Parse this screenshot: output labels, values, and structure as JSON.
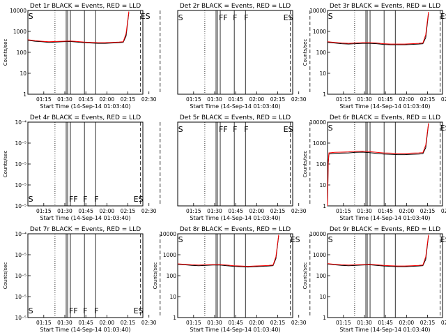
{
  "figure": {
    "background": "#ffffff",
    "axis_color": "#000000",
    "events_color": "#000000",
    "lld_color": "#ff0000"
  },
  "chart_data": [
    {
      "type": "line",
      "title": "Det 1r BLACK = Events, RED = LLD",
      "xlabel": "Start Time (14-Sep-14 01:03:40)",
      "ylabel": "Counts/sec",
      "yscale": "log",
      "ylim": [
        1,
        10000
      ],
      "yticks": [
        "1",
        "10",
        "100",
        "1000",
        "10000"
      ],
      "xticks": [
        "01:15",
        "01:30",
        "01:45",
        "02:00",
        "02:15",
        "02:30"
      ],
      "annotations": [
        {
          "text": "S",
          "x": "01:04"
        },
        {
          "text": "ES",
          "x": "02:24"
        }
      ],
      "series": [
        {
          "name": "Events",
          "color": "#000000",
          "x": [
            0,
            5,
            10,
            15,
            20,
            25,
            30,
            35,
            40,
            45,
            50,
            55,
            60,
            65,
            68,
            70,
            72
          ],
          "y": [
            380,
            340,
            320,
            300,
            310,
            320,
            330,
            310,
            290,
            280,
            270,
            270,
            280,
            290,
            300,
            600,
            8000
          ]
        },
        {
          "name": "LLD",
          "color": "#ff0000",
          "x": [
            0,
            5,
            10,
            15,
            20,
            25,
            30,
            35,
            40,
            45,
            50,
            55,
            60,
            65,
            68,
            70,
            72
          ],
          "y": [
            400,
            360,
            340,
            320,
            330,
            340,
            350,
            330,
            310,
            300,
            290,
            290,
            300,
            310,
            320,
            800,
            9000
          ]
        }
      ]
    },
    {
      "type": "line",
      "title": "Det 2r BLACK = Events, RED = LLD",
      "xlabel": "Start Time (14-Sep-14 01:03:40)",
      "ylabel": "",
      "yscale": "log",
      "ylim": [
        1,
        10000
      ],
      "yticks": [],
      "xticks": [
        "01:15",
        "01:30",
        "01:45",
        "02:00",
        "02:15",
        "02:30"
      ],
      "annotations": [
        {
          "text": "S",
          "x": "01:04"
        },
        {
          "text": "FF",
          "x": "01:33"
        },
        {
          "text": "F",
          "x": "01:43"
        },
        {
          "text": "F",
          "x": "01:51"
        },
        {
          "text": "ES",
          "x": "02:19"
        }
      ],
      "series": []
    },
    {
      "type": "line",
      "title": "Det 3r BLACK = Events, RED = LLD",
      "xlabel": "Start Time (14-Sep-14 01:03:40)",
      "ylabel": "Counts/sec",
      "yscale": "log",
      "ylim": [
        1,
        10000
      ],
      "yticks": [
        "1",
        "10",
        "100",
        "1000",
        "10000"
      ],
      "xticks": [
        "01:15",
        "01:30",
        "01:45",
        "02:00",
        "02:15",
        "02:30"
      ],
      "annotations": [
        {
          "text": "S",
          "x": "01:04"
        },
        {
          "text": "ES",
          "x": "02:24"
        }
      ],
      "series": [
        {
          "name": "Events",
          "color": "#000000",
          "x": [
            0,
            5,
            10,
            15,
            20,
            25,
            30,
            35,
            40,
            45,
            50,
            55,
            60,
            65,
            68,
            70,
            72
          ],
          "y": [
            300,
            280,
            260,
            250,
            260,
            270,
            270,
            260,
            240,
            230,
            230,
            230,
            240,
            250,
            260,
            500,
            7000
          ]
        },
        {
          "name": "LLD",
          "color": "#ff0000",
          "x": [
            0,
            5,
            10,
            15,
            20,
            25,
            30,
            35,
            40,
            45,
            50,
            55,
            60,
            65,
            68,
            70,
            72
          ],
          "y": [
            320,
            300,
            280,
            270,
            280,
            290,
            290,
            280,
            260,
            250,
            250,
            250,
            260,
            270,
            280,
            700,
            8500
          ]
        }
      ]
    },
    {
      "type": "line",
      "title": "Det 4r BLACK = Events, RED = LLD",
      "xlabel": "Start Time (14-Sep-14 01:03:40)",
      "ylabel": "Counts/sec",
      "yscale": "log",
      "ylim": [
        1e-05,
        0.0001
      ],
      "yticks": [
        "10⁻⁵",
        "10⁻⁵",
        "10⁻⁵",
        "10⁻⁵",
        "10⁻⁴"
      ],
      "xticks": [
        "01:15",
        "01:30",
        "01:45",
        "02:00",
        "02:15",
        "02:30"
      ],
      "annotations": [
        {
          "text": "S",
          "x": "01:04"
        },
        {
          "text": "FF",
          "x": "01:33"
        },
        {
          "text": "F",
          "x": "01:43"
        },
        {
          "text": "F",
          "x": "01:51"
        },
        {
          "text": "ES",
          "x": "02:19"
        }
      ],
      "series": []
    },
    {
      "type": "line",
      "title": "Det 5r BLACK = Events, RED = LLD",
      "xlabel": "Start Time (14-Sep-14 01:03:40)",
      "ylabel": "",
      "yscale": "log",
      "ylim": [
        1,
        10000
      ],
      "yticks": [],
      "xticks": [
        "01:15",
        "01:30",
        "01:45",
        "02:00",
        "02:15",
        "02:30"
      ],
      "annotations": [
        {
          "text": "S",
          "x": "01:04"
        },
        {
          "text": "FF",
          "x": "01:33"
        },
        {
          "text": "F",
          "x": "01:43"
        },
        {
          "text": "F",
          "x": "01:51"
        },
        {
          "text": "ES",
          "x": "02:19"
        }
      ],
      "series": []
    },
    {
      "type": "line",
      "title": "Det 6r BLACK = Events, RED = LLD",
      "xlabel": "Start Time (14-Sep-14 01:03:40)",
      "ylabel": "Counts/sec",
      "yscale": "log",
      "ylim": [
        1,
        10000
      ],
      "yticks": [
        "1",
        "10",
        "100",
        "1000",
        "10000"
      ],
      "xticks": [
        "01:15",
        "01:30",
        "01:45",
        "02:00",
        "02:15",
        "02:30"
      ],
      "annotations": [
        {
          "text": "S",
          "x": "01:04"
        },
        {
          "text": "ES",
          "x": "02:24"
        }
      ],
      "series": [
        {
          "name": "Events",
          "color": "#000000",
          "x": [
            0,
            0.5,
            1,
            5,
            10,
            15,
            20,
            25,
            30,
            35,
            40,
            45,
            50,
            55,
            60,
            65,
            68,
            70,
            72
          ],
          "y": [
            1,
            100,
            300,
            320,
            330,
            340,
            360,
            370,
            350,
            320,
            300,
            290,
            280,
            280,
            290,
            300,
            310,
            600,
            8000
          ]
        },
        {
          "name": "LLD",
          "color": "#ff0000",
          "x": [
            0,
            0.5,
            1,
            5,
            10,
            15,
            20,
            25,
            30,
            35,
            40,
            45,
            50,
            55,
            60,
            65,
            68,
            70,
            72
          ],
          "y": [
            1,
            120,
            340,
            360,
            370,
            380,
            400,
            410,
            390,
            360,
            340,
            330,
            320,
            320,
            330,
            340,
            350,
            800,
            9000
          ]
        }
      ]
    },
    {
      "type": "line",
      "title": "Det 7r BLACK = Events, RED = LLD",
      "xlabel": "Start Time (14-Sep-14 01:03:40)",
      "ylabel": "Counts/sec",
      "yscale": "log",
      "ylim": [
        1e-05,
        0.0001
      ],
      "yticks": [
        "10⁻⁵",
        "10⁻⁵",
        "10⁻⁵",
        "10⁻⁵",
        "10⁻⁴"
      ],
      "xticks": [
        "01:15",
        "01:30",
        "01:45",
        "02:00",
        "02:15",
        "02:30"
      ],
      "annotations": [
        {
          "text": "S",
          "x": "01:04"
        },
        {
          "text": "FF",
          "x": "01:33"
        },
        {
          "text": "F",
          "x": "01:43"
        },
        {
          "text": "F",
          "x": "01:51"
        },
        {
          "text": "ES",
          "x": "02:19"
        }
      ],
      "series": []
    },
    {
      "type": "line",
      "title": "Det 8r BLACK = Events, RED = LLD",
      "xlabel": "Start Time (14-Sep-14 01:03:40)",
      "ylabel": "Counts/sec",
      "yscale": "log",
      "ylim": [
        1,
        10000
      ],
      "yticks": [
        "1",
        "10",
        "100",
        "1000",
        "10000"
      ],
      "xticks": [
        "01:15",
        "01:30",
        "01:45",
        "02:00",
        "02:15",
        "02:30"
      ],
      "annotations": [
        {
          "text": "S",
          "x": "01:04"
        },
        {
          "text": "ES",
          "x": "02:24"
        }
      ],
      "series": [
        {
          "name": "Events",
          "color": "#000000",
          "x": [
            0,
            5,
            10,
            15,
            20,
            25,
            30,
            35,
            40,
            45,
            50,
            55,
            60,
            65,
            68,
            70,
            72
          ],
          "y": [
            350,
            330,
            310,
            300,
            310,
            320,
            320,
            300,
            280,
            270,
            260,
            270,
            280,
            290,
            300,
            650,
            8000
          ]
        },
        {
          "name": "LLD",
          "color": "#ff0000",
          "x": [
            0,
            5,
            10,
            15,
            20,
            25,
            30,
            35,
            40,
            45,
            50,
            55,
            60,
            65,
            68,
            70,
            72
          ],
          "y": [
            370,
            350,
            330,
            320,
            330,
            340,
            340,
            320,
            300,
            290,
            280,
            290,
            300,
            310,
            320,
            800,
            9000
          ]
        }
      ]
    },
    {
      "type": "line",
      "title": "Det 9r BLACK = Events, RED = LLD",
      "xlabel": "Start Time (14-Sep-14 01:03:40)",
      "ylabel": "Counts/sec",
      "yscale": "log",
      "ylim": [
        1,
        10000
      ],
      "yticks": [
        "1",
        "10",
        "100",
        "1000",
        "10000"
      ],
      "xticks": [
        "01:15",
        "01:30",
        "01:45",
        "02:00",
        "02:15",
        "02:30"
      ],
      "annotations": [
        {
          "text": "S",
          "x": "01:04"
        },
        {
          "text": "ES",
          "x": "02:24"
        }
      ],
      "series": [
        {
          "name": "Events",
          "color": "#000000",
          "x": [
            0,
            5,
            10,
            15,
            20,
            25,
            30,
            35,
            40,
            45,
            50,
            55,
            60,
            65,
            68,
            70,
            72
          ],
          "y": [
            360,
            330,
            310,
            300,
            310,
            320,
            330,
            310,
            290,
            280,
            270,
            270,
            280,
            290,
            300,
            600,
            8000
          ]
        },
        {
          "name": "LLD",
          "color": "#ff0000",
          "x": [
            0,
            5,
            10,
            15,
            20,
            25,
            30,
            35,
            40,
            45,
            50,
            55,
            60,
            65,
            68,
            70,
            72
          ],
          "y": [
            380,
            350,
            330,
            320,
            330,
            340,
            350,
            330,
            310,
            300,
            290,
            290,
            300,
            310,
            320,
            800,
            9000
          ]
        }
      ]
    }
  ]
}
